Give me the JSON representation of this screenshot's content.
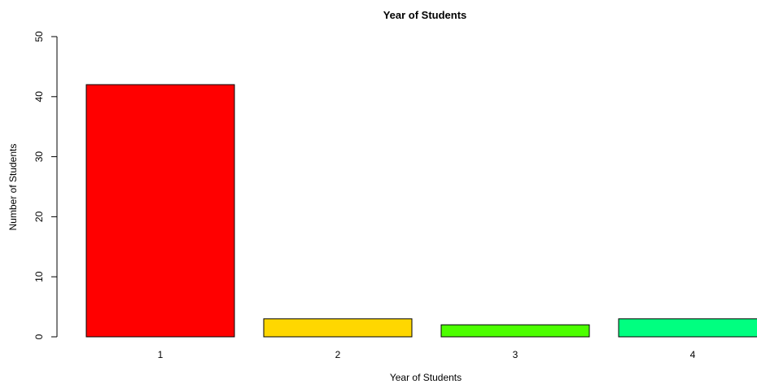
{
  "chart_data": {
    "type": "bar",
    "title": "Year of Students",
    "xlabel": "Year of Students",
    "ylabel": "Number of Students",
    "categories": [
      "1",
      "2",
      "3",
      "4"
    ],
    "values": [
      42,
      3,
      2,
      3
    ],
    "ylim": [
      0,
      50
    ],
    "yticks": [
      "0",
      "10",
      "20",
      "30",
      "40",
      "50"
    ],
    "colors": [
      "#ff0000",
      "#ffd700",
      "#4cff00",
      "#00ff80"
    ],
    "grid": false,
    "legend": "none"
  }
}
